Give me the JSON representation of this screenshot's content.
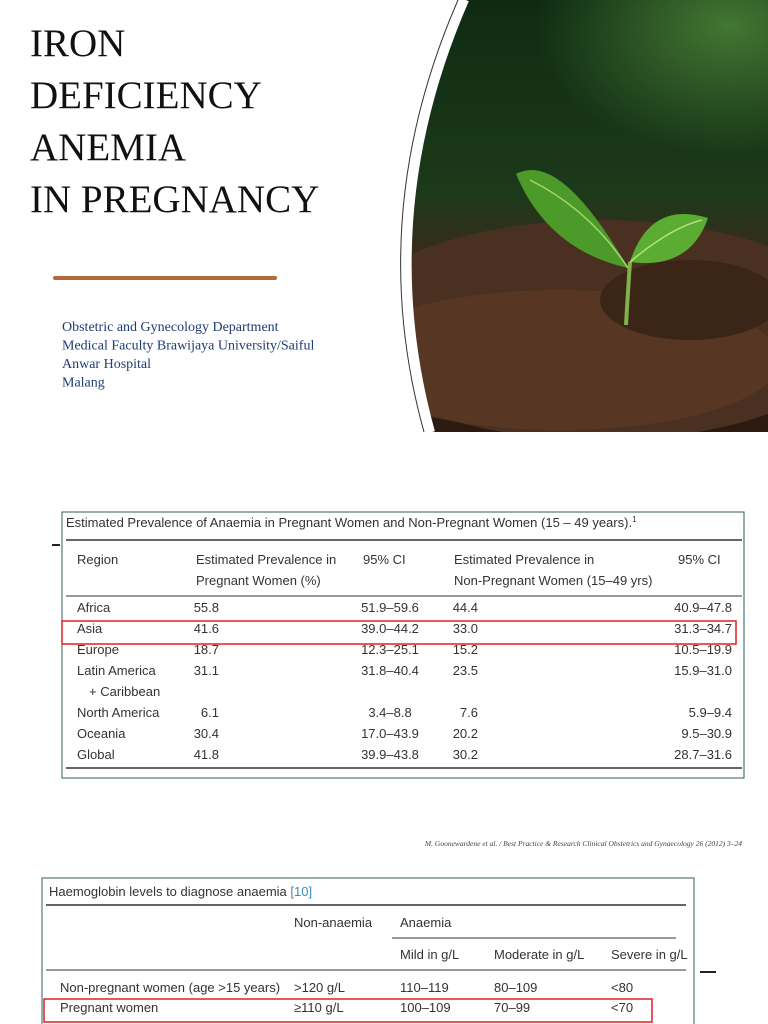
{
  "title": {
    "lines": [
      "IRON",
      "DEFICIENCY",
      "ANEMIA",
      "IN PREGNANCY"
    ]
  },
  "affiliation": {
    "lines": [
      "Obstetric and Gynecology Department",
      "Medical Faculty Brawijaya University/Saiful",
      "Anwar Hospital",
      "Malang"
    ]
  },
  "table1": {
    "caption": "Estimated Prevalence of Anaemia in Pregnant Women and Non-Pregnant Women (15 – 49 years).",
    "caption_ref": "1",
    "headers": [
      [
        "Region"
      ],
      [
        "Estimated Prevalence in",
        "Pregnant Women (%)"
      ],
      [
        "95% CI"
      ],
      [
        "Estimated Prevalence in",
        "Non-Pregnant Women (15–49 yrs)"
      ],
      [
        "95% CI"
      ]
    ],
    "rows": [
      [
        [
          "Africa"
        ],
        "55.8",
        "51.9–59.6",
        "44.4",
        "40.9–47.8"
      ],
      [
        [
          "Asia"
        ],
        "41.6",
        "39.0–44.2",
        "33.0",
        "31.3–34.7"
      ],
      [
        [
          "Europe"
        ],
        "18.7",
        "12.3–25.1",
        "15.2",
        "10.5–19.9"
      ],
      [
        [
          "Latin America",
          "+ Caribbean"
        ],
        "31.1",
        "31.8–40.4",
        "23.5",
        "15.9–31.0"
      ],
      [
        [
          "North America"
        ],
        "6.1",
        "3.4–8.8",
        "7.6",
        "5.9–9.4"
      ],
      [
        [
          "Oceania"
        ],
        "30.4",
        "17.0–43.9",
        "20.2",
        "9.5–30.9"
      ],
      [
        [
          "Global"
        ],
        "41.8",
        "39.9–43.8",
        "30.2",
        "28.7–31.6"
      ]
    ]
  },
  "citation": "M. Goonewardene et al. / Best Practice & Research Clinical Obstetrics and Gynaecology 26 (2012) 3–24",
  "table2": {
    "caption": "Haemoglobin levels to diagnose anaemia",
    "caption_ref": "[10]",
    "group_headers": [
      "Non-anaemia",
      "Anaemia"
    ],
    "sub_headers": [
      "Mild in g/L",
      "Moderate in g/L",
      "Severe in g/L"
    ],
    "rows": [
      [
        "Non-pregnant women (age >15 years)",
        ">120 g/L",
        "110–119",
        "80–109",
        "<80"
      ],
      [
        "Pregnant women",
        "≥110 g/L",
        "100–109",
        "70–99",
        "<70"
      ]
    ]
  }
}
